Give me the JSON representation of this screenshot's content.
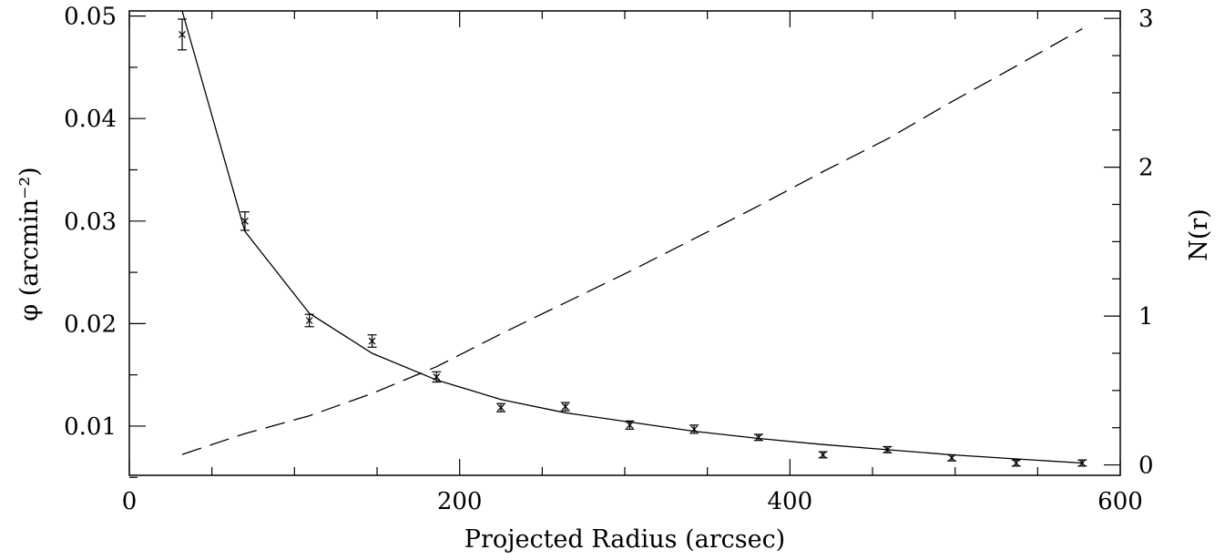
{
  "chart_data": {
    "type": "line",
    "title": "",
    "xlabel": "Projected Radius (arcsec)",
    "ylabel": "φ (arcmin⁻²)",
    "y2label": "N(r)",
    "xlim": [
      0,
      600
    ],
    "ylim": [
      0.0052,
      0.0505
    ],
    "y2lim": [
      -0.07,
      3.05
    ],
    "x_ticks": [
      "0",
      "200",
      "400",
      "600"
    ],
    "y_ticks": [
      "0.01",
      "0.02",
      "0.03",
      "0.04",
      "0.05"
    ],
    "y2_ticks": [
      "0",
      "1",
      "2",
      "3"
    ],
    "grid": false,
    "series": [
      {
        "style": "points-with-error-bars",
        "axis": "left",
        "x": [
          32,
          70,
          109,
          147,
          186,
          225,
          264,
          303,
          342,
          381,
          420,
          459,
          498,
          537,
          577
        ],
        "y": [
          0.0482,
          0.03,
          0.0203,
          0.0183,
          0.0148,
          0.0118,
          0.0119,
          0.0101,
          0.0097,
          0.0089,
          0.0072,
          0.0077,
          0.0069,
          0.0064,
          0.0064
        ],
        "err": [
          0.0015,
          0.0009,
          0.0006,
          0.0006,
          0.0005,
          0.0004,
          0.0004,
          0.0004,
          0.0004,
          0.0003,
          0.0003,
          0.0003,
          0.0003,
          0.0003,
          0.0003
        ]
      },
      {
        "style": "solid",
        "axis": "left",
        "x": [
          32,
          70,
          109,
          147,
          186,
          225,
          264,
          303,
          342,
          381,
          420,
          459,
          498,
          537,
          577
        ],
        "y": [
          0.0505,
          0.029,
          0.021,
          0.0171,
          0.0145,
          0.0126,
          0.0113,
          0.0104,
          0.0095,
          0.0088,
          0.0082,
          0.0077,
          0.0072,
          0.0068,
          0.0064
        ]
      },
      {
        "style": "dashed",
        "axis": "right",
        "x": [
          32,
          70,
          109,
          147,
          186,
          225,
          264,
          303,
          342,
          381,
          420,
          459,
          498,
          537,
          577
        ],
        "y": [
          0.07,
          0.21,
          0.33,
          0.48,
          0.66,
          0.88,
          1.09,
          1.3,
          1.52,
          1.74,
          1.97,
          2.19,
          2.44,
          2.68,
          2.93
        ]
      }
    ]
  }
}
